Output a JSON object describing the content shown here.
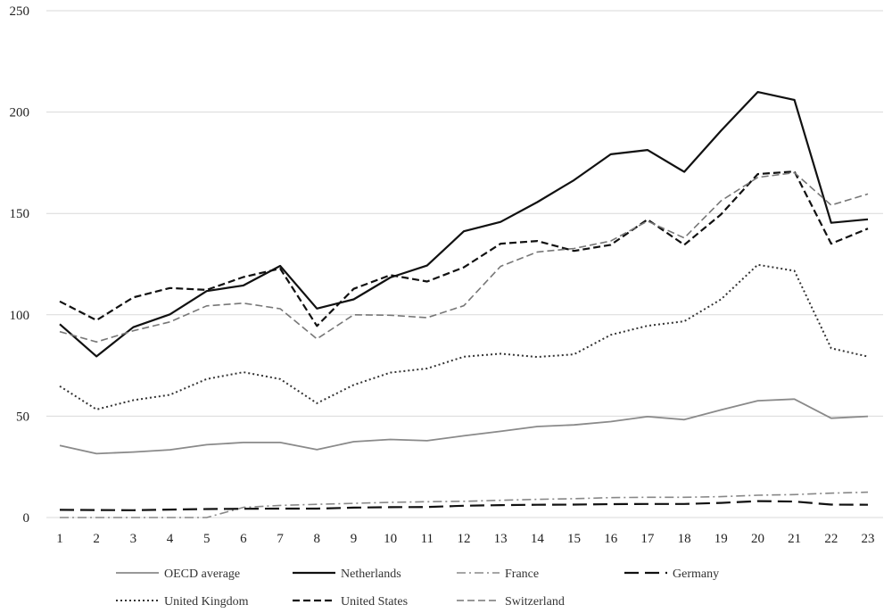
{
  "chart_data": {
    "type": "line",
    "title": "",
    "xlabel": "",
    "ylabel": "",
    "x": [
      1,
      2,
      3,
      4,
      5,
      6,
      7,
      8,
      9,
      10,
      11,
      12,
      13,
      14,
      15,
      16,
      17,
      18,
      19,
      20,
      21,
      22,
      23
    ],
    "ylim": [
      0,
      250
    ],
    "yticks": [
      0,
      50,
      100,
      150,
      200,
      250
    ],
    "grid": true,
    "legend_position": "bottom",
    "series": [
      {
        "name": "OECD average",
        "color": "#8a8a8a",
        "dash": "solid",
        "width": 1.8,
        "values": [
          35.5,
          31.5,
          32.3,
          33.4,
          35.9,
          37,
          37,
          33.5,
          37.4,
          38.5,
          37.9,
          40.3,
          42.5,
          44.9,
          45.7,
          47.3,
          49.8,
          48.3,
          53.1,
          57.6,
          58.4,
          49,
          49.9
        ]
      },
      {
        "name": "Netherlands",
        "color": "#111111",
        "dash": "solid",
        "width": 2.2,
        "values": [
          95.4,
          79.5,
          93.9,
          100.2,
          111.7,
          114.5,
          124.1,
          103.1,
          107.6,
          118.4,
          124.3,
          141.2,
          145.8,
          155.6,
          166.4,
          179.2,
          181.3,
          170.5,
          190.8,
          209.9,
          206,
          145.4,
          147.1
        ]
      },
      {
        "name": "France",
        "color": "#888888",
        "dash": "dashdot",
        "width": 1.6,
        "values": [
          0,
          0,
          0,
          0,
          0,
          5,
          6,
          6.5,
          7,
          7.5,
          7.8,
          8,
          8.5,
          9,
          9.3,
          9.8,
          10,
          10,
          10.3,
          11,
          11.3,
          12,
          12.5
        ]
      },
      {
        "name": "Germany",
        "color": "#111111",
        "dash": "longdash",
        "width": 2.2,
        "values": [
          3.8,
          3.7,
          3.6,
          3.9,
          4.2,
          4.3,
          4.4,
          4.4,
          4.9,
          5.1,
          5.2,
          5.8,
          6.1,
          6.3,
          6.4,
          6.6,
          6.7,
          6.7,
          7.2,
          8.1,
          7.9,
          6.4,
          6.3
        ]
      },
      {
        "name": "United Kingdom",
        "color": "#333333",
        "dash": "dotted",
        "width": 2.0,
        "values": [
          64.8,
          53.3,
          57.9,
          60.5,
          68.3,
          71.7,
          68.3,
          56.4,
          65.4,
          71.5,
          73.5,
          79.3,
          80.8,
          79.2,
          80.5,
          90.1,
          94.6,
          96.8,
          107.6,
          124.7,
          121.7,
          83.5,
          79.4
        ]
      },
      {
        "name": "United States",
        "color": "#111111",
        "dash": "dashed",
        "width": 2.2,
        "values": [
          106.6,
          97.3,
          108.6,
          113.2,
          112.3,
          118.6,
          122.8,
          94.5,
          112.8,
          119.6,
          116.4,
          123.4,
          135.1,
          136.4,
          131.5,
          134.5,
          147,
          134.5,
          149.5,
          169.4,
          170.7,
          135.1,
          142.5
        ]
      },
      {
        "name": "Switzerland",
        "color": "#777777",
        "dash": "dashed",
        "width": 1.6,
        "values": [
          91.7,
          86.6,
          92.1,
          96.5,
          104.4,
          105.7,
          103,
          88.1,
          100,
          99.8,
          98.6,
          104.5,
          123.9,
          131,
          132.7,
          136.4,
          146.2,
          137.9,
          156.2,
          167.8,
          170.1,
          154.1,
          159.6
        ]
      }
    ]
  }
}
